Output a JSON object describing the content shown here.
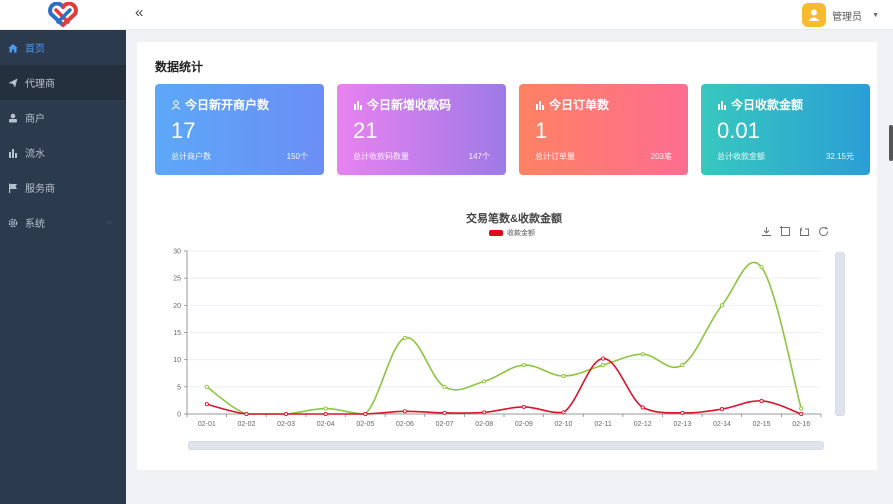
{
  "header": {
    "collapse_icon": "double-chevron-left-icon",
    "collapse_glyph": "«",
    "user_name": "管理员",
    "caret": "▼"
  },
  "sidebar": {
    "items": [
      {
        "label": "首页",
        "icon": "home-icon",
        "active": true
      },
      {
        "label": "代理商",
        "icon": "send-icon",
        "active": false
      },
      {
        "label": "商户",
        "icon": "user-icon",
        "active": false
      },
      {
        "label": "流水",
        "icon": "bar-chart-icon",
        "active": false
      },
      {
        "label": "服务商",
        "icon": "flag-icon",
        "active": false
      },
      {
        "label": "系统",
        "icon": "gear-icon",
        "active": false,
        "has_submenu": true,
        "arrow": "⌵"
      }
    ]
  },
  "main": {
    "section_title": "数据统计",
    "cards": [
      {
        "title": "今日新开商户数",
        "icon": "user-icon",
        "value": "17",
        "foot_label": "总计商户数",
        "foot_value": "150个",
        "gradient": [
          "#5ca8f8",
          "#6b8ef5"
        ]
      },
      {
        "title": "今日新增收款码",
        "icon": "bar-chart-icon",
        "value": "21",
        "foot_label": "总计收款码数量",
        "foot_value": "147个",
        "gradient": [
          "#e882f0",
          "#9e7ae6"
        ]
      },
      {
        "title": "今日订单数",
        "icon": "bar-chart-icon",
        "value": "1",
        "foot_label": "总计订单量",
        "foot_value": "203笔",
        "gradient": [
          "#fe8163",
          "#fe6d91"
        ]
      },
      {
        "title": "今日收款金额",
        "icon": "bar-chart-icon",
        "value": "0.01",
        "foot_label": "总计收款金额",
        "foot_value": "32.15元",
        "gradient": [
          "#37c8bf",
          "#2a9ed6"
        ]
      }
    ]
  },
  "chart_data": {
    "type": "line",
    "title": "交易笔数&收款金额",
    "legend": [
      "收款金额"
    ],
    "legend_color": "#e00a16",
    "xlabel": "",
    "ylabel": "",
    "ylim": [
      0,
      30
    ],
    "yticks": [
      0,
      5,
      10,
      15,
      20,
      25,
      30
    ],
    "grid": true,
    "smooth": true,
    "categories": [
      "02-01",
      "02-02",
      "02-03",
      "02-04",
      "02-05",
      "02-06",
      "02-07",
      "02-08",
      "02-09",
      "02-10",
      "02-11",
      "02-12",
      "02-13",
      "02-14",
      "02-15",
      "02-16"
    ],
    "series": [
      {
        "name": "交易笔数",
        "color": "#8cc63f",
        "values": [
          5,
          0,
          0,
          1,
          0,
          14,
          5,
          6,
          9,
          7,
          9,
          11,
          9,
          20,
          27,
          1
        ]
      },
      {
        "name": "收款金额",
        "color": "#d9152b",
        "values": [
          1.8,
          0,
          0,
          0,
          0,
          0.5,
          0.2,
          0.3,
          1.3,
          0.3,
          10.2,
          1.2,
          0.2,
          0.9,
          2.4,
          0.01
        ]
      }
    ],
    "toolbox": [
      "download-icon",
      "zoom-select-icon",
      "zoom-reset-icon",
      "refresh-icon"
    ]
  }
}
